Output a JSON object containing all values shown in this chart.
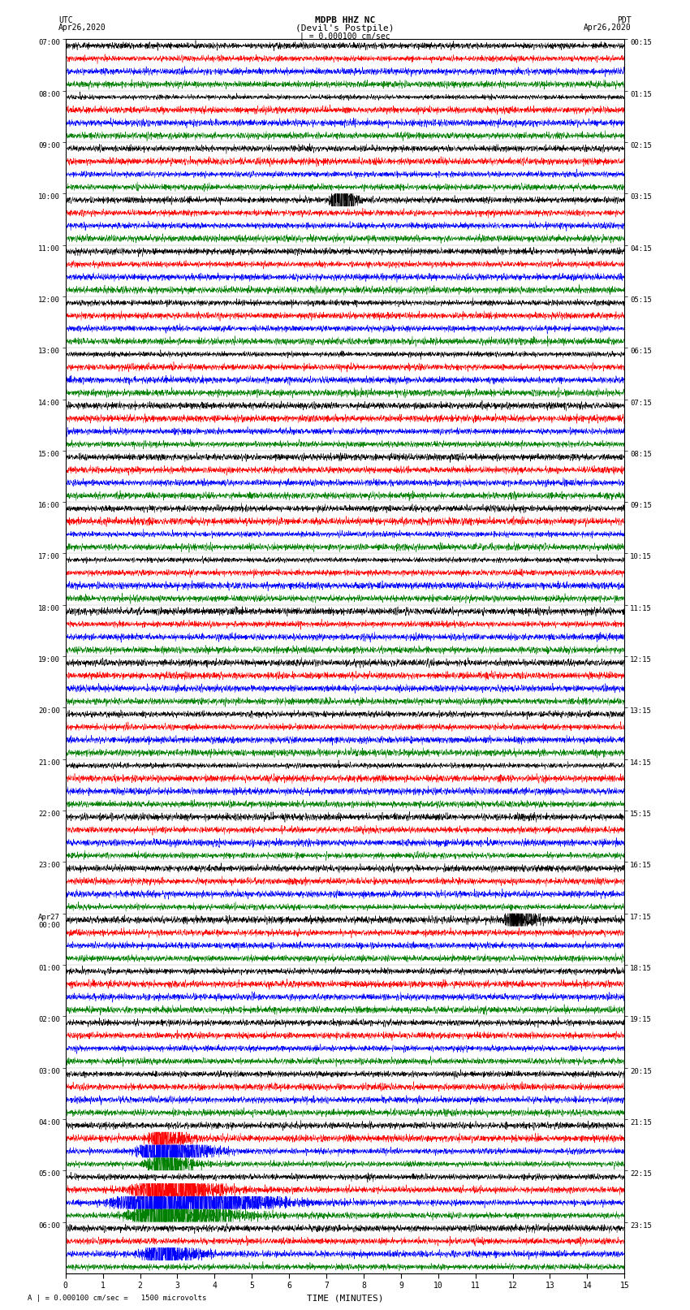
{
  "title_line1": "MDPB HHZ NC",
  "title_line2": "(Devil's Postpile)",
  "scale_label": "| = 0.000100 cm/sec",
  "label_utc": "UTC",
  "label_utc_date": "Apr26,2020",
  "label_pdt": "PDT",
  "label_pdt_date": "Apr26,2020",
  "xlabel": "TIME (MINUTES)",
  "footer": "A | = 0.000100 cm/sec =   1500 microvolts",
  "utc_labels": [
    "07:00",
    "08:00",
    "09:00",
    "10:00",
    "11:00",
    "12:00",
    "13:00",
    "14:00",
    "15:00",
    "16:00",
    "17:00",
    "18:00",
    "19:00",
    "20:00",
    "21:00",
    "22:00",
    "23:00",
    "Apr27\n00:00",
    "01:00",
    "02:00",
    "03:00",
    "04:00",
    "05:00",
    "06:00"
  ],
  "pdt_labels": [
    "00:15",
    "01:15",
    "02:15",
    "03:15",
    "04:15",
    "05:15",
    "06:15",
    "07:15",
    "08:15",
    "09:15",
    "10:15",
    "11:15",
    "12:15",
    "13:15",
    "14:15",
    "15:15",
    "16:15",
    "17:15",
    "18:15",
    "19:15",
    "20:15",
    "21:15",
    "22:15",
    "23:15"
  ],
  "n_rows": 24,
  "n_traces_per_row": 4,
  "colors": [
    "black",
    "red",
    "blue",
    "green"
  ],
  "fig_width": 8.5,
  "fig_height": 16.13,
  "bg_color": "white",
  "trace_amplitude": 0.42,
  "minutes": 15,
  "samples_per_minute": 200,
  "special_events": [
    {
      "row": 3,
      "trace": 0,
      "minute": 7.3,
      "amplitude_mult": 12,
      "duration": 0.5
    },
    {
      "row": 17,
      "trace": 0,
      "minute": 12.0,
      "amplitude_mult": 6,
      "duration": 0.8
    },
    {
      "row": 21,
      "trace": 3,
      "minute": 2.5,
      "amplitude_mult": 8,
      "duration": 1.0
    },
    {
      "row": 21,
      "trace": 2,
      "minute": 2.5,
      "amplitude_mult": 10,
      "duration": 1.5
    },
    {
      "row": 21,
      "trace": 1,
      "minute": 2.5,
      "amplitude_mult": 5,
      "duration": 1.0
    },
    {
      "row": 22,
      "trace": 3,
      "minute": 2.5,
      "amplitude_mult": 15,
      "duration": 2.0
    },
    {
      "row": 22,
      "trace": 2,
      "minute": 2.5,
      "amplitude_mult": 25,
      "duration": 2.5
    },
    {
      "row": 22,
      "trace": 1,
      "minute": 2.5,
      "amplitude_mult": 8,
      "duration": 2.0
    },
    {
      "row": 23,
      "trace": 2,
      "minute": 2.5,
      "amplitude_mult": 5,
      "duration": 1.5
    }
  ]
}
